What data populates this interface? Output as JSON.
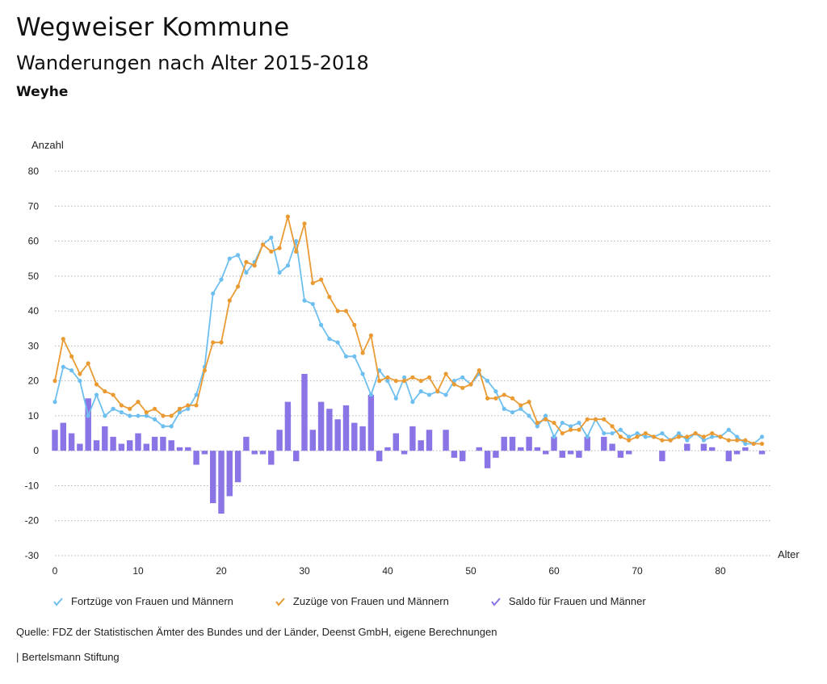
{
  "header": {
    "title": "Wegweiser Kommune",
    "subtitle": "Wanderungen nach Alter 2015-2018",
    "region": "Weyhe"
  },
  "colors": {
    "fortzuege": "#6ebff0",
    "zuzuege": "#ea9a32",
    "saldo": "#8a74e6",
    "grid": "#b0b0b0"
  },
  "footer": {
    "source": "Quelle: FDZ der Statistischen Ämter des Bundes und der Länder, Deenst GmbH, eigene Berechnungen",
    "publisher": "| Bertelsmann Stiftung"
  },
  "chart_data": {
    "type": "line",
    "title": "Wanderungen nach Alter 2015-2018",
    "xlabel": "Alter",
    "ylabel": "Anzahl",
    "ylim": [
      -30,
      80
    ],
    "xlim": [
      0,
      85
    ],
    "yticks": [
      80,
      70,
      60,
      50,
      40,
      30,
      20,
      10,
      0,
      -10,
      -20,
      -30
    ],
    "xticks": [
      0,
      10,
      20,
      30,
      40,
      50,
      60,
      70,
      80
    ],
    "x": [
      0,
      1,
      2,
      3,
      4,
      5,
      6,
      7,
      8,
      9,
      10,
      11,
      12,
      13,
      14,
      15,
      16,
      17,
      18,
      19,
      20,
      21,
      22,
      23,
      24,
      25,
      26,
      27,
      28,
      29,
      30,
      31,
      32,
      33,
      34,
      35,
      36,
      37,
      38,
      39,
      40,
      41,
      42,
      43,
      44,
      45,
      46,
      47,
      48,
      49,
      50,
      51,
      52,
      53,
      54,
      55,
      56,
      57,
      58,
      59,
      60,
      61,
      62,
      63,
      64,
      65,
      66,
      67,
      68,
      69,
      70,
      71,
      72,
      73,
      74,
      75,
      76,
      77,
      78,
      79,
      80,
      81,
      82,
      83,
      84,
      85
    ],
    "series": [
      {
        "name": "Fortzüge von Frauen und Männern",
        "kind": "line",
        "values": [
          14,
          24,
          23,
          20,
          10,
          16,
          10,
          12,
          11,
          10,
          10,
          10,
          9,
          7,
          7,
          11,
          12,
          16,
          24,
          45,
          49,
          55,
          56,
          51,
          54,
          59,
          61,
          51,
          53,
          60,
          43,
          42,
          36,
          32,
          31,
          27,
          27,
          22,
          16,
          23,
          20,
          15,
          21,
          14,
          17,
          16,
          17,
          16,
          20,
          21,
          19,
          22,
          20,
          17,
          12,
          11,
          12,
          10,
          7,
          10,
          4,
          8,
          7,
          8,
          4,
          9,
          5,
          5,
          6,
          4,
          5,
          4,
          4,
          5,
          3,
          5,
          3,
          5,
          3,
          4,
          4,
          6,
          4,
          2,
          2,
          4
        ]
      },
      {
        "name": "Zuzüge von Frauen und Männern",
        "kind": "line",
        "values": [
          20,
          32,
          27,
          22,
          25,
          19,
          17,
          16,
          13,
          12,
          14,
          11,
          12,
          10,
          10,
          12,
          13,
          13,
          23,
          31,
          31,
          43,
          47,
          54,
          53,
          59,
          57,
          58,
          67,
          57,
          65,
          48,
          49,
          44,
          40,
          40,
          36,
          28,
          33,
          20,
          21,
          20,
          20,
          21,
          20,
          21,
          17,
          22,
          19,
          18,
          19,
          23,
          15,
          15,
          16,
          15,
          13,
          14,
          8,
          9,
          8,
          5,
          6,
          6,
          9,
          9,
          9,
          7,
          4,
          3,
          4,
          5,
          4,
          3,
          3,
          4,
          4,
          5,
          4,
          5,
          4,
          3,
          3,
          3,
          2,
          2
        ]
      },
      {
        "name": "Saldo für Frauen und Männer",
        "kind": "bar",
        "values": [
          6,
          8,
          5,
          2,
          15,
          3,
          7,
          4,
          2,
          3,
          5,
          2,
          4,
          4,
          3,
          1,
          1,
          -4,
          -1,
          -15,
          -18,
          -13,
          -9,
          4,
          -1,
          -1,
          -4,
          6,
          14,
          -3,
          22,
          6,
          14,
          12,
          9,
          13,
          8,
          7,
          16,
          -3,
          1,
          5,
          -1,
          7,
          3,
          6,
          0,
          6,
          -2,
          -3,
          0,
          1,
          -5,
          -2,
          4,
          4,
          1,
          4,
          1,
          -1,
          4,
          -2,
          -1,
          -2,
          4,
          0,
          4,
          2,
          -2,
          -1,
          0,
          0,
          0,
          -3,
          0,
          0,
          2,
          0,
          2,
          1,
          0,
          -3,
          -1,
          1,
          0,
          -1
        ]
      }
    ],
    "legend_position": "bottom"
  }
}
